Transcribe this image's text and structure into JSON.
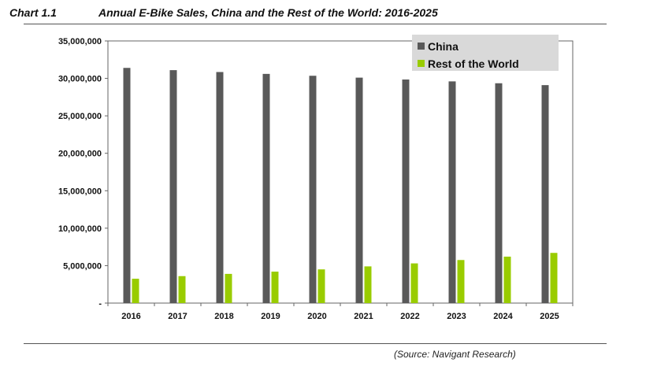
{
  "header": {
    "chart_label": "Chart 1.1",
    "title": "Annual E-Bike Sales, China and the Rest of the World: 2016-2025"
  },
  "source": "(Source: Navigant Research)",
  "colors": {
    "china": "#595959",
    "rest_of_world": "#99cc00",
    "plot_border": "#666666",
    "legend_bg": "#d9d9d9"
  },
  "chart_data": {
    "type": "bar",
    "title": "Annual E-Bike Sales, China and the Rest of the World: 2016-2025",
    "xlabel": "",
    "ylabel": "",
    "categories": [
      "2016",
      "2017",
      "2018",
      "2019",
      "2020",
      "2021",
      "2022",
      "2023",
      "2024",
      "2025"
    ],
    "series": [
      {
        "name": "China",
        "color": "#595959",
        "values": [
          31400000,
          31100000,
          30850000,
          30600000,
          30350000,
          30100000,
          29850000,
          29600000,
          29350000,
          29100000
        ]
      },
      {
        "name": "Rest of the World",
        "color": "#99cc00",
        "values": [
          3250000,
          3600000,
          3900000,
          4200000,
          4500000,
          4900000,
          5300000,
          5750000,
          6200000,
          6700000
        ]
      }
    ],
    "ylim": [
      0,
      35000000
    ],
    "yticks": [
      0,
      5000000,
      10000000,
      15000000,
      20000000,
      25000000,
      30000000,
      35000000
    ],
    "ytick_labels": [
      "-",
      "5,000,000",
      "10,000,000",
      "15,000,000",
      "20,000,000",
      "25,000,000",
      "30,000,000",
      "35,000,000"
    ],
    "grid": false,
    "legend_position": "top-right"
  }
}
